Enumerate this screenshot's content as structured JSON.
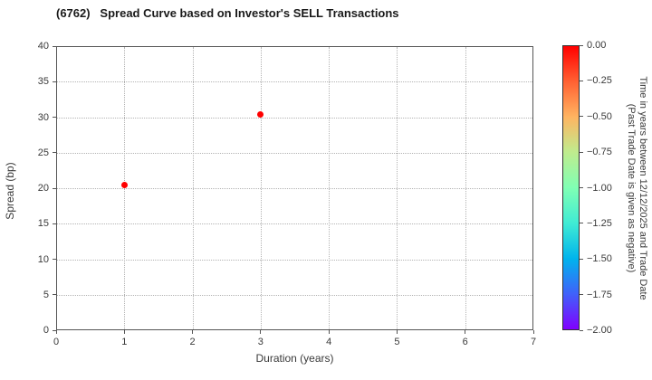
{
  "chart_data": {
    "type": "scatter",
    "title": "(6762)   Spread Curve based on Investor's SELL Transactions",
    "xlabel": "Duration (years)",
    "ylabel": "Spread (bp)",
    "xlim": [
      0,
      7
    ],
    "ylim": [
      0,
      40
    ],
    "xticks": [
      "0",
      "1",
      "2",
      "3",
      "4",
      "5",
      "6",
      "7"
    ],
    "yticks": [
      "0",
      "5",
      "10",
      "15",
      "20",
      "25",
      "30",
      "35",
      "40"
    ],
    "grid": true,
    "points": [
      {
        "x": 1.0,
        "y": 20.5,
        "color": "#ff0000"
      },
      {
        "x": 3.0,
        "y": 30.4,
        "color": "#ff0000"
      }
    ],
    "colorbar": {
      "label_line1": "Time in years between 12/12/2025 and Trade Date",
      "label_line2": "(Past Trade Date is given as negative)",
      "ticks": [
        "0.00",
        "−0.25",
        "−0.50",
        "−0.75",
        "−1.00",
        "−1.25",
        "−1.50",
        "−1.75",
        "−2.00"
      ],
      "range": [
        0.0,
        -2.0
      ],
      "colormap": "rainbow",
      "gradient_top_to_bottom": [
        "#ff0000",
        "#ff6132",
        "#ffb461",
        "#bfec8e",
        "#80ffb4",
        "#40ecd4",
        "#00b4ec",
        "#4061fa",
        "#8000ff"
      ]
    }
  }
}
